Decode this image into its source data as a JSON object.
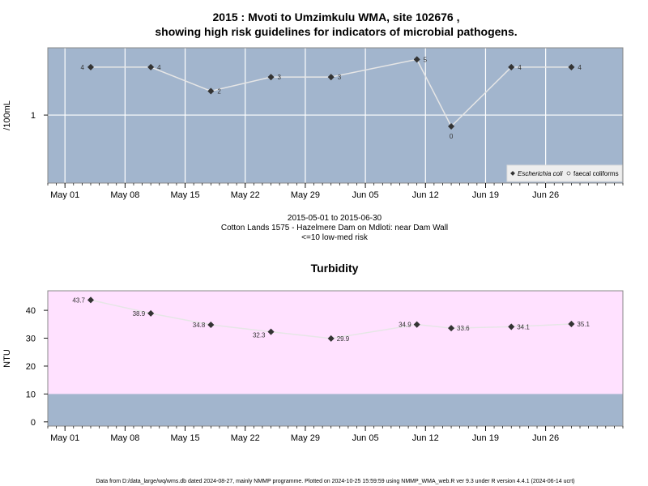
{
  "colors": {
    "panel_bg": "#a2b5cd",
    "highrisk_bg": "#ffe1ff",
    "grid": "#ffffff",
    "line": "#e6e6e6",
    "marker": "#333333",
    "frame": "#888888"
  },
  "chart_data": [
    {
      "type": "line",
      "title": "2015 : Mvoti to Umzimkulu WMA, site 102676 ,",
      "subtitle": "showing high risk guidelines for indicators of microbial pathogens.",
      "ylabel": "/100mL",
      "y_scale": "log",
      "y_ticks": [
        {
          "value": 1,
          "label": "1"
        }
      ],
      "ylim": [
        0.14,
        7
      ],
      "x_ticks": [
        "May 01",
        "May 08",
        "May 15",
        "May 22",
        "May 29",
        "Jun 05",
        "Jun 12",
        "Jun 19",
        "Jun 26"
      ],
      "x_tick_dates": [
        "2015-05-01",
        "2015-05-08",
        "2015-05-15",
        "2015-05-22",
        "2015-05-29",
        "2015-06-05",
        "2015-06-12",
        "2015-06-19",
        "2015-06-26"
      ],
      "xlim": [
        "2015-04-29",
        "2015-07-05"
      ],
      "grid": true,
      "legend_position": "bottom-right",
      "series": [
        {
          "name": "Escherichia coli",
          "marker": "filled-diamond",
          "x": [
            "2015-05-04",
            "2015-05-11",
            "2015-05-18",
            "2015-05-25",
            "2015-06-01",
            "2015-06-11",
            "2015-06-15",
            "2015-06-22",
            "2015-06-29"
          ],
          "values": [
            4,
            4,
            2,
            3,
            3,
            5,
            0,
            4,
            4
          ],
          "labels": [
            "4",
            "4",
            "2",
            "3",
            "3",
            "5",
            "0",
            "4",
            "4"
          ]
        },
        {
          "name": "faecal coliforms",
          "marker": "open-circle",
          "x": [],
          "values": []
        }
      ],
      "caption": [
        "2015-05-01 to 2015-06-30",
        "Cotton Lands 1575 - Hazelmere Dam on Mdloti: near Dam Wall",
        "<=10 low-med risk"
      ]
    },
    {
      "type": "line",
      "title": "Turbidity",
      "ylabel": "NTU",
      "ylim": [
        -1.5,
        47
      ],
      "y_ticks": [
        0,
        10,
        20,
        30,
        40
      ],
      "x_ticks": [
        "May 01",
        "May 08",
        "May 15",
        "May 22",
        "May 29",
        "Jun 05",
        "Jun 12",
        "Jun 19",
        "Jun 26"
      ],
      "x_tick_dates": [
        "2015-05-01",
        "2015-05-08",
        "2015-05-15",
        "2015-05-22",
        "2015-05-29",
        "2015-06-05",
        "2015-06-12",
        "2015-06-19",
        "2015-06-26"
      ],
      "xlim": [
        "2015-04-29",
        "2015-07-05"
      ],
      "high_risk_above": 10,
      "grid": false,
      "series": [
        {
          "marker": "filled-diamond",
          "x": [
            "2015-05-04",
            "2015-05-11",
            "2015-05-18",
            "2015-05-25",
            "2015-06-01",
            "2015-06-11",
            "2015-06-15",
            "2015-06-22",
            "2015-06-29"
          ],
          "values": [
            43.7,
            38.9,
            34.8,
            32.3,
            29.9,
            34.9,
            33.6,
            34.1,
            35.1
          ],
          "labels": [
            "43.7",
            "38.9",
            "34.8",
            "32.3",
            "29.9",
            "34.9",
            "33.6",
            "34.1",
            "35.1"
          ]
        }
      ]
    }
  ],
  "footer": "Data from D:/data_large/wq/wms.db dated 2024-08-27, mainly NMMP programme. Plotted on 2024-10-25 15:59:59 using NMMP_WMA_web.R ver 9.3 under R version 4.4.1 (2024-06-14 ucrt)"
}
